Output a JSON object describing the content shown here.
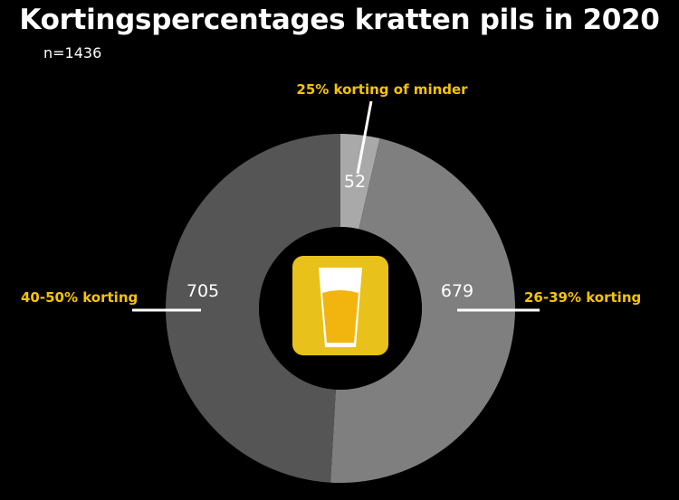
{
  "header": {
    "title": "Kortingspercentages kratten pils in 2020",
    "subtitle": "n=1436"
  },
  "center_icon": "beer-glass-icon",
  "colors": {
    "background": "#000000",
    "label": "#f5c400",
    "value": "#ffffff",
    "leader": "#ffffff",
    "icon_bg": "#e8c21a",
    "beer": "#f2b50f"
  },
  "chart_data": {
    "type": "pie",
    "donut": true,
    "title": "Kortingspercentages kratten pils in 2020",
    "subtitle": "n=1436",
    "slices": [
      {
        "label": "25% korting of minder",
        "value": 52,
        "color": "#a9a9a9"
      },
      {
        "label": "26-39% korting",
        "value": 679,
        "color": "#7f7f7f"
      },
      {
        "label": "40-50% korting",
        "value": 705,
        "color": "#555555"
      }
    ]
  }
}
